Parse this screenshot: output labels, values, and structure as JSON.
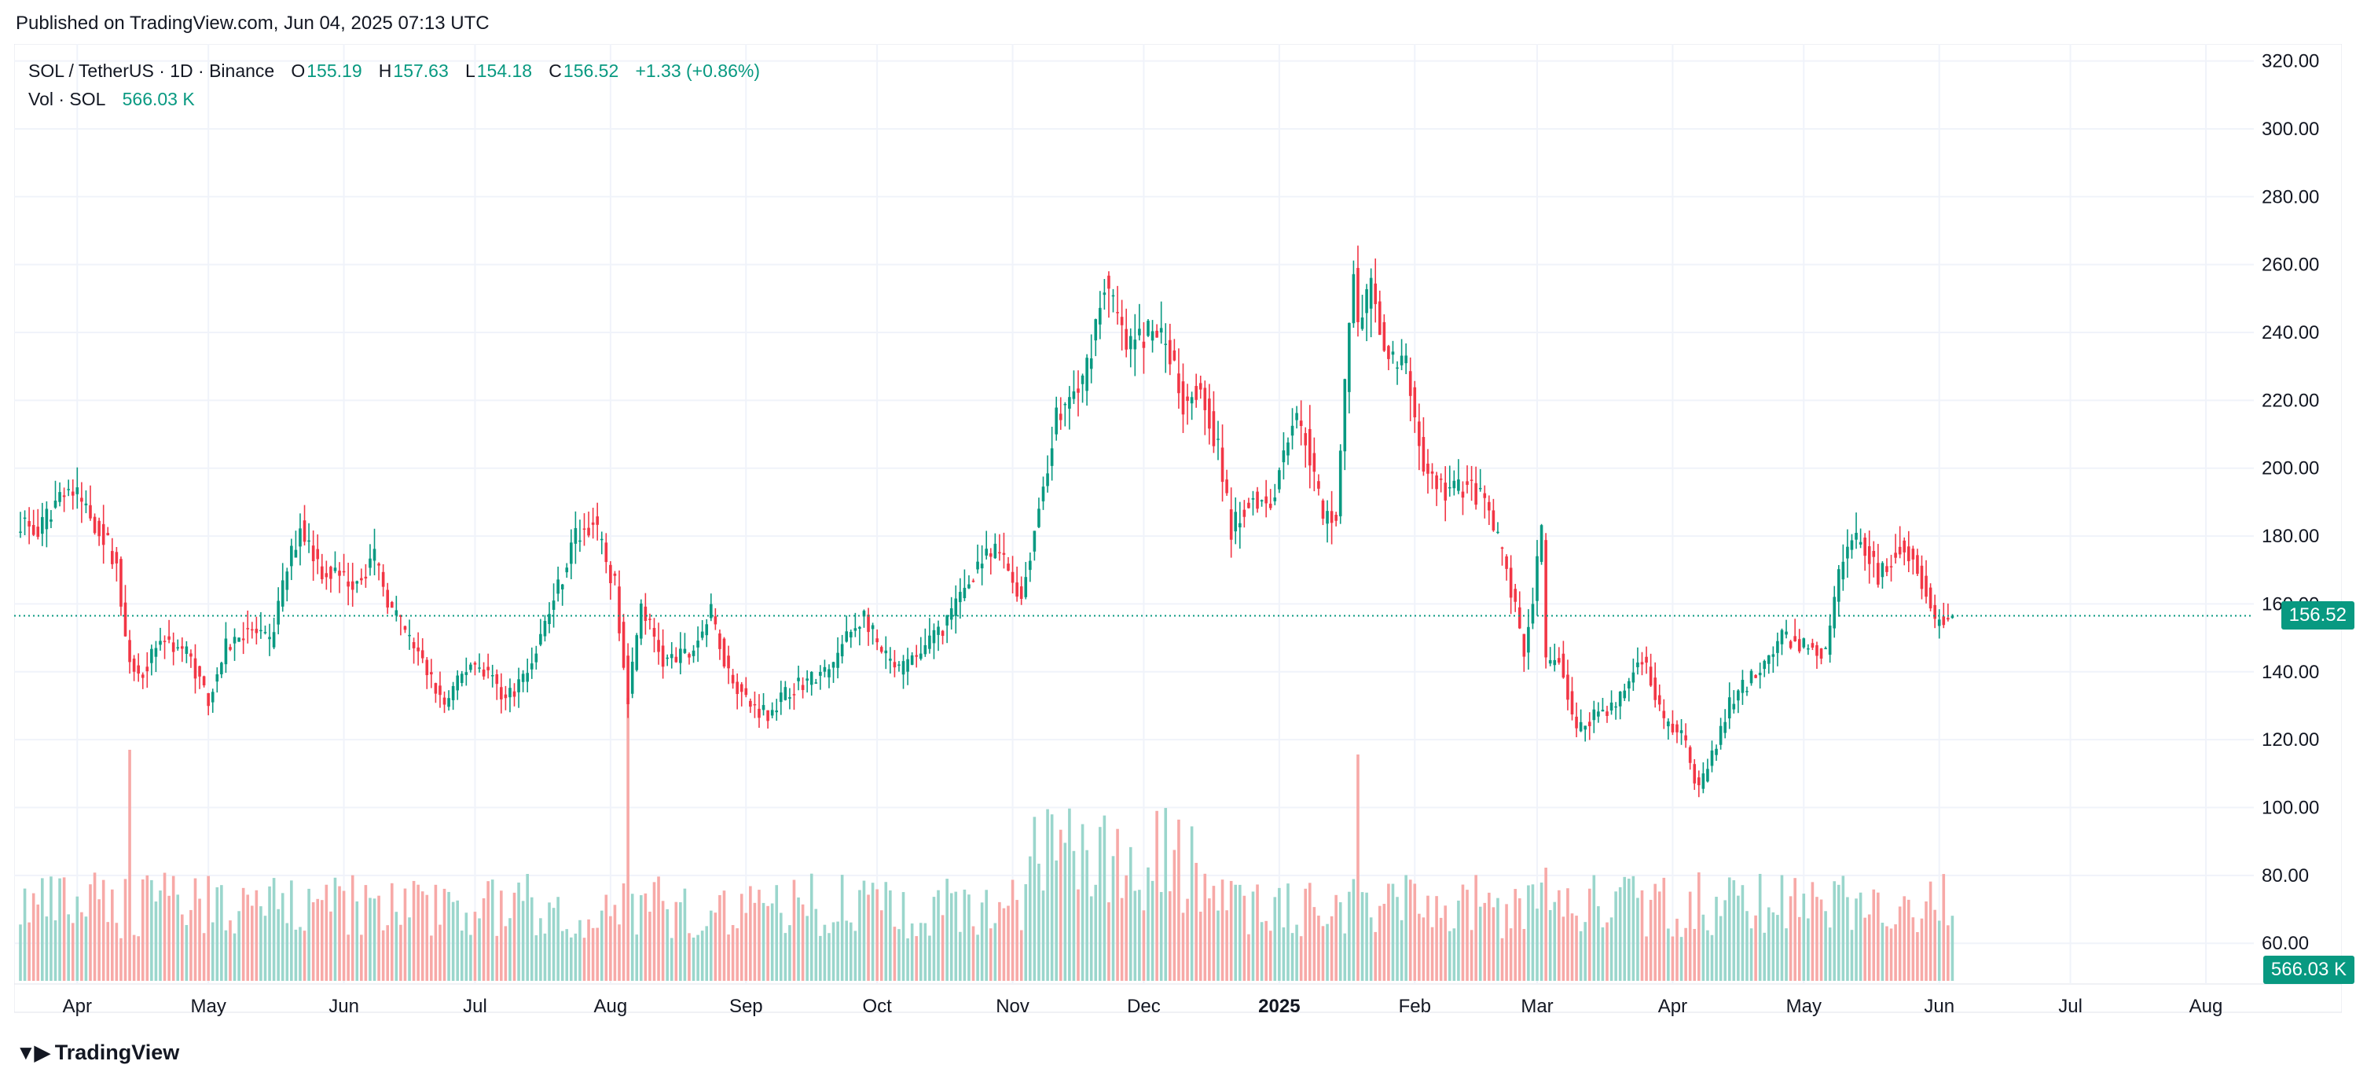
{
  "header": {
    "published": "Published on TradingView.com, Jun 04, 2025 07:13 UTC"
  },
  "legend": {
    "symbol": "SOL / TetherUS · 1D · Binance",
    "o_label": "O",
    "o": "155.19",
    "h_label": "H",
    "h": "157.63",
    "l_label": "L",
    "l": "154.18",
    "c_label": "C",
    "c": "156.52",
    "change": "+1.33 (+0.86%)",
    "vol_label": "Vol · SOL",
    "vol": "566.03 K"
  },
  "price_tag": "156.52",
  "volume_tag": "566.03 K",
  "footer": {
    "brand": "TradingView"
  },
  "colors": {
    "up": "#089981",
    "down": "#f23645",
    "up_vol": "#9ad6cc",
    "down_vol": "#f7a9a7",
    "grid": "#f0f3fa",
    "text": "#131722"
  },
  "chart_data": {
    "type": "candlestick",
    "symbol": "SOL / TetherUS",
    "interval": "1D",
    "exchange": "Binance",
    "y_ticks": [
      60,
      80,
      100,
      120,
      140,
      160,
      180,
      200,
      220,
      240,
      260,
      280,
      300,
      320
    ],
    "y_tick_labels": [
      "60.00",
      "80.00",
      "100.00",
      "120.00",
      "140.00",
      "160.00",
      "180.00",
      "200.00",
      "220.00",
      "240.00",
      "260.00",
      "280.00",
      "300.00",
      "320.00"
    ],
    "ylim": [
      48,
      325
    ],
    "x_labels": [
      "Apr",
      "May",
      "Jun",
      "Jul",
      "Aug",
      "Sep",
      "Oct",
      "Nov",
      "Dec",
      "2025",
      "Feb",
      "Mar",
      "Apr",
      "May",
      "Jun",
      "Jul",
      "Aug"
    ],
    "x_label_dates": [
      "2024-04-01",
      "2024-05-01",
      "2024-06-01",
      "2024-07-01",
      "2024-08-01",
      "2024-09-01",
      "2024-10-01",
      "2024-11-01",
      "2024-12-01",
      "2025-01-01",
      "2025-02-01",
      "2025-03-01",
      "2025-04-01",
      "2025-05-01",
      "2025-06-01",
      "2025-07-01",
      "2025-08-01"
    ],
    "start_date": "2024-03-19",
    "end_date": "2025-06-04",
    "last_close": 156.52,
    "close_path": [
      [
        "2024-03-19",
        185
      ],
      [
        "2024-03-23",
        180
      ],
      [
        "2024-03-29",
        195
      ],
      [
        "2024-04-02",
        190
      ],
      [
        "2024-04-07",
        180
      ],
      [
        "2024-04-10",
        172
      ],
      [
        "2024-04-12",
        148
      ],
      [
        "2024-04-15",
        138
      ],
      [
        "2024-04-20",
        150
      ],
      [
        "2024-04-26",
        146
      ],
      [
        "2024-05-01",
        132
      ],
      [
        "2024-05-05",
        147
      ],
      [
        "2024-05-10",
        153
      ],
      [
        "2024-05-15",
        148
      ],
      [
        "2024-05-19",
        170
      ],
      [
        "2024-05-22",
        183
      ],
      [
        "2024-05-27",
        170
      ],
      [
        "2024-06-03",
        167
      ],
      [
        "2024-06-08",
        173
      ],
      [
        "2024-06-12",
        158
      ],
      [
        "2024-06-18",
        145
      ],
      [
        "2024-06-24",
        130
      ],
      [
        "2024-06-30",
        143
      ],
      [
        "2024-07-04",
        140
      ],
      [
        "2024-07-08",
        132
      ],
      [
        "2024-07-13",
        140
      ],
      [
        "2024-07-20",
        165
      ],
      [
        "2024-07-24",
        180
      ],
      [
        "2024-07-28",
        184
      ],
      [
        "2024-08-02",
        165
      ],
      [
        "2024-08-05",
        133
      ],
      [
        "2024-08-08",
        160
      ],
      [
        "2024-08-13",
        143
      ],
      [
        "2024-08-19",
        145
      ],
      [
        "2024-08-24",
        157
      ],
      [
        "2024-08-28",
        140
      ],
      [
        "2024-09-02",
        130
      ],
      [
        "2024-09-06",
        128
      ],
      [
        "2024-09-12",
        136
      ],
      [
        "2024-09-20",
        140
      ],
      [
        "2024-09-24",
        150
      ],
      [
        "2024-09-28",
        157
      ],
      [
        "2024-10-02",
        145
      ],
      [
        "2024-10-06",
        140
      ],
      [
        "2024-10-12",
        147
      ],
      [
        "2024-10-18",
        157
      ],
      [
        "2024-10-24",
        172
      ],
      [
        "2024-10-29",
        175
      ],
      [
        "2024-11-03",
        162
      ],
      [
        "2024-11-08",
        195
      ],
      [
        "2024-11-11",
        215
      ],
      [
        "2024-11-17",
        225
      ],
      [
        "2024-11-22",
        255
      ],
      [
        "2024-11-24",
        248
      ],
      [
        "2024-11-27",
        235
      ],
      [
        "2024-12-02",
        240
      ],
      [
        "2024-12-06",
        238
      ],
      [
        "2024-12-10",
        220
      ],
      [
        "2024-12-14",
        225
      ],
      [
        "2024-12-18",
        205
      ],
      [
        "2024-12-21",
        182
      ],
      [
        "2024-12-26",
        192
      ],
      [
        "2024-12-30",
        190
      ],
      [
        "2025-01-04",
        215
      ],
      [
        "2025-01-07",
        210
      ],
      [
        "2025-01-11",
        185
      ],
      [
        "2025-01-14",
        187
      ],
      [
        "2025-01-18",
        260
      ],
      [
        "2025-01-19",
        240
      ],
      [
        "2025-01-22",
        252
      ],
      [
        "2025-01-26",
        232
      ],
      [
        "2025-01-30",
        230
      ],
      [
        "2025-02-03",
        200
      ],
      [
        "2025-02-08",
        193
      ],
      [
        "2025-02-13",
        195
      ],
      [
        "2025-02-17",
        190
      ],
      [
        "2025-02-22",
        170
      ],
      [
        "2025-02-26",
        145
      ],
      [
        "2025-03-02",
        180
      ],
      [
        "2025-03-03",
        142
      ],
      [
        "2025-03-06",
        145
      ],
      [
        "2025-03-10",
        122
      ],
      [
        "2025-03-14",
        128
      ],
      [
        "2025-03-19",
        130
      ],
      [
        "2025-03-25",
        145
      ],
      [
        "2025-03-30",
        125
      ],
      [
        "2025-04-03",
        122
      ],
      [
        "2025-04-07",
        105
      ],
      [
        "2025-04-10",
        115
      ],
      [
        "2025-04-14",
        130
      ],
      [
        "2025-04-20",
        140
      ],
      [
        "2025-04-26",
        150
      ],
      [
        "2025-05-01",
        148
      ],
      [
        "2025-05-06",
        145
      ],
      [
        "2025-05-10",
        175
      ],
      [
        "2025-05-14",
        180
      ],
      [
        "2025-05-18",
        168
      ],
      [
        "2025-05-23",
        178
      ],
      [
        "2025-05-27",
        172
      ],
      [
        "2025-05-31",
        155
      ],
      [
        "2025-06-04",
        156.5
      ]
    ],
    "volume_peaks_k": [
      [
        "2024-04-13",
        2450
      ],
      [
        "2024-08-05",
        3250
      ],
      [
        "2025-01-19",
        2400
      ],
      [
        "2025-03-03",
        1200
      ],
      [
        "2025-04-07",
        1150
      ]
    ]
  }
}
